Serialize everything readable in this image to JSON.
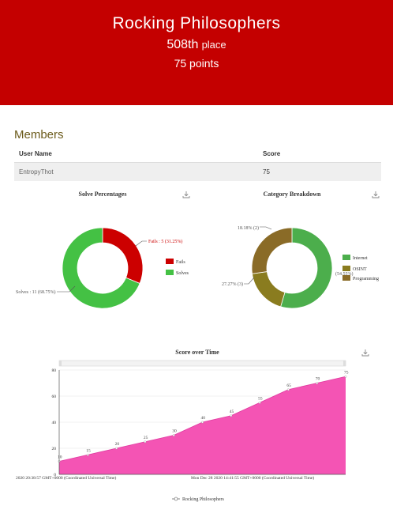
{
  "team": {
    "name": "Rocking Philosophers",
    "place_number": "508th",
    "place_word": "place",
    "points_number": "75",
    "points_word": "points"
  },
  "members": {
    "title": "Members",
    "columns": [
      "User Name",
      "Score"
    ],
    "rows": [
      {
        "user": "EntropyThot",
        "score": "75"
      }
    ]
  },
  "colors": {
    "banner": "#c40000",
    "fails": "#cc0000",
    "solves": "#44c144",
    "internet": "#4cae4c",
    "osint": "#8a7c1f",
    "programming": "#8a6b27",
    "score_area": "#f454b4"
  },
  "charts": {
    "download_icon": "download-icon"
  },
  "chart_data": [
    {
      "type": "pie",
      "title": "Solve Percentages",
      "categories": [
        "Fails",
        "Solves"
      ],
      "values": [
        5,
        11
      ],
      "labels": [
        "Fails : 5 (31.25%)",
        "Solves : 11 (68.75%)"
      ],
      "legend": "right"
    },
    {
      "type": "pie",
      "title": "Category Breakdown",
      "categories": [
        "Internet",
        "OSINT",
        "Programming"
      ],
      "values": [
        6,
        2,
        3
      ],
      "labels": [
        "(54.55%)",
        "18.18% (2)",
        "27.27% (3)"
      ],
      "legend": "right"
    },
    {
      "type": "area",
      "title": "Score over Time",
      "x_start_label": "2020 20:38:57 GMT+0000 (Coordinated Universal Time)",
      "x_end_label": "Mon Dec 28 2020 14:41:55 GMT+0000 (Coordinated Universal Time)",
      "y_ticks": [
        "0",
        "20",
        "40",
        "60",
        "80"
      ],
      "ylim": [
        0,
        80
      ],
      "grid": true,
      "series": [
        {
          "name": "Rocking Philosophers",
          "values": [
            10,
            15,
            20,
            25,
            30,
            40,
            45,
            55,
            65,
            70,
            75
          ]
        }
      ]
    }
  ]
}
